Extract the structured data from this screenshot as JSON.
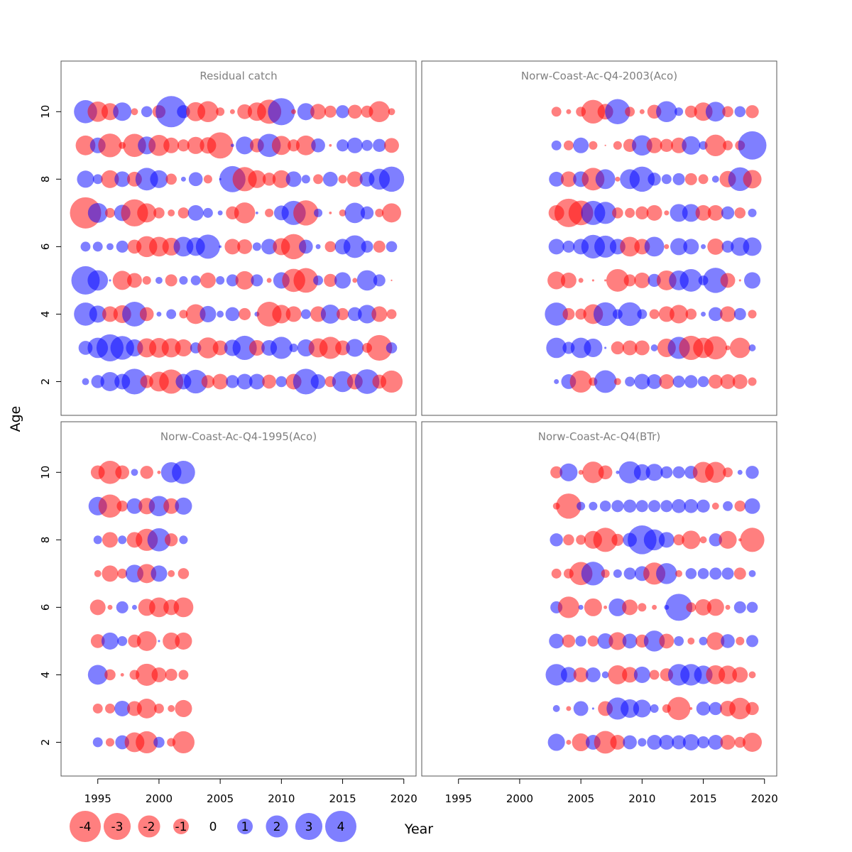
{
  "figure": {
    "y_axis_label": "Age",
    "x_axis_label": "Year",
    "x_ticks": [
      1995,
      2000,
      2005,
      2010,
      2015,
      2020
    ],
    "y_ticks": [
      2,
      4,
      6,
      8,
      10
    ],
    "colors": {
      "positive": "#0000ff",
      "negative": "#ff0000",
      "panel_title": "#808080",
      "frame": "#555555"
    },
    "legend": [
      {
        "value": -4,
        "label": "-4"
      },
      {
        "value": -3,
        "label": "-3"
      },
      {
        "value": -2,
        "label": "-2"
      },
      {
        "value": -1,
        "label": "-1"
      },
      {
        "value": 0,
        "label": "0"
      },
      {
        "value": 1,
        "label": "1"
      },
      {
        "value": 2,
        "label": "2"
      },
      {
        "value": 3,
        "label": "3"
      },
      {
        "value": 4,
        "label": "4"
      }
    ]
  },
  "chart_data": [
    {
      "type": "scatter",
      "title": "Residual catch",
      "xlabel": "Year",
      "ylabel": "Age",
      "xlim": [
        1992,
        2021
      ],
      "ylim": [
        1,
        11.5
      ],
      "ages": [
        2,
        3,
        4,
        5,
        6,
        7,
        8,
        9,
        10
      ],
      "residuals": {
        "2": {
          "1994": 0.2,
          "1995": 0.7,
          "1996": 1.5,
          "1997": 1.0,
          "1998": 2.7,
          "1999": -0.7,
          "2000": -1.6,
          "2001": -2.4,
          "2002": 1.0,
          "2003": 2.3,
          "2004": -0.7,
          "2005": -1.0,
          "2006": 0.7,
          "2007": 1.0,
          "2008": 1.0,
          "2009": -0.8,
          "2010": 0.5,
          "2011": -1.0,
          "2012": 2.7,
          "2013": 0.9,
          "2014": -0.5,
          "2015": 1.8,
          "2016": -1.0,
          "2017": 2.5,
          "2018": -0.8,
          "2019": -2.0
        },
        "3": {
          "1994": 0.8,
          "1995": 1.7,
          "1996": 3.0,
          "1997": 2.3,
          "1998": 1.2,
          "1999": -1.5,
          "2000": -1.6,
          "2001": -1.5,
          "2002": -1.2,
          "2003": 0.5,
          "2004": -1.8,
          "2005": -0.9,
          "2006": 1.1,
          "2007": 2.4,
          "2008": -1.0,
          "2009": 1.0,
          "2010": 2.0,
          "2011": 0.3,
          "2012": 1.2,
          "2013": -1.5,
          "2014": -2.0,
          "2015": -0.9,
          "2016": 1.3,
          "2017": -0.4,
          "2018": -2.7,
          "2019": 0.5
        },
        "4": {
          "1994": 2.2,
          "1995": 1.2,
          "1996": -1.0,
          "1997": -1.3,
          "1998": 2.5,
          "1999": -0.8,
          "2000": 0.1,
          "2001": 0.4,
          "2002": -0.3,
          "2003": -1.6,
          "2004": 1.1,
          "2005": 0.2,
          "2006": 0.8,
          "2007": -0.6,
          "2008": 0.1,
          "2009": -2.5,
          "2010": -1.4,
          "2011": -1.0,
          "2012": 0.4,
          "2013": -1.0,
          "2014": 1.5,
          "2015": -0.6,
          "2016": 0.8,
          "2017": 1.4,
          "2018": -1.0,
          "2019": -0.4
        },
        "5": {
          "1994": 3.3,
          "1995": 1.7,
          "1996": 0.02,
          "1997": -1.5,
          "1998": -0.9,
          "1999": -0.3,
          "2000": 0.2,
          "2001": -0.6,
          "2002": 0.3,
          "2003": 0.4,
          "2004": -1.0,
          "2005": 0.3,
          "2006": 0.6,
          "2007": -1.4,
          "2008": 0.6,
          "2009": -0.1,
          "2010": 1.1,
          "2011": -2.2,
          "2012": -2.5,
          "2013": 0.4,
          "2014": -0.7,
          "2015": 1.1,
          "2016": -0.1,
          "2017": 1.7,
          "2018": 0.6,
          "2019": -0.01
        },
        "6": {
          "1994": 0.4,
          "1995": 0.4,
          "1996": 0.2,
          "1997": 0.6,
          "1998": -0.8,
          "1999": -1.8,
          "2000": -1.6,
          "2001": -1.3,
          "2002": 1.6,
          "2003": 1.4,
          "2004": 2.4,
          "2005": 0.03,
          "2006": -1.0,
          "2007": -0.9,
          "2008": 0.3,
          "2009": 1.0,
          "2010": -1.2,
          "2011": -2.6,
          "2012": 0.8,
          "2013": 0.1,
          "2014": -0.5,
          "2015": 1.0,
          "2016": 2.1,
          "2017": 0.6,
          "2018": -0.6,
          "2019": 0.5
        },
        "7": {
          "1994": -4.0,
          "1995": 1.6,
          "1996": -0.4,
          "1997": 1.1,
          "1998": -3.0,
          "1999": -1.5,
          "2000": -0.5,
          "2001": -0.2,
          "2002": -0.5,
          "2003": 1.0,
          "2004": 0.4,
          "2005": 0.1,
          "2006": -0.7,
          "2007": -1.8,
          "2008": 0.03,
          "2009": -0.3,
          "2010": 0.9,
          "2011": 2.4,
          "2012": -2.6,
          "2013": 0.3,
          "2014": -0.03,
          "2015": -0.2,
          "2016": 1.7,
          "2017": 0.7,
          "2018": -0.3,
          "2019": -1.5
        },
        "8": {
          "1994": 1.2,
          "1995": 0.4,
          "1996": -1.3,
          "1997": 1.0,
          "1998": -0.9,
          "1999": 2.1,
          "2000": 1.3,
          "2001": -0.5,
          "2002": 0.1,
          "2003": 0.8,
          "2004": -0.3,
          "2005": 0.02,
          "2006": 2.8,
          "2007": -2.4,
          "2008": -1.3,
          "2009": -0.7,
          "2010": -1.3,
          "2011": 1.0,
          "2012": 0.3,
          "2013": -0.4,
          "2014": 0.9,
          "2015": -0.3,
          "2016": -1.0,
          "2017": 0.9,
          "2018": 1.8,
          "2019": 2.6
        },
        "9": {
          "1994": -1.6,
          "1995": 1.0,
          "1996": -2.3,
          "1997": -0.2,
          "1998": -2.2,
          "1999": 1.3,
          "2000": -1.8,
          "2001": -1.0,
          "2002": -0.6,
          "2003": -1.2,
          "2004": -1.1,
          "2005": -2.8,
          "2006": 0.05,
          "2007": 1.3,
          "2008": -0.8,
          "2009": 2.2,
          "2010": -1.5,
          "2011": -0.6,
          "2012": -1.6,
          "2013": 0.8,
          "2014": -0.03,
          "2015": 0.6,
          "2016": 1.0,
          "2017": 0.5,
          "2018": 0.7,
          "2019": -0.9
        },
        "10": {
          "1994": 2.2,
          "1995": -1.7,
          "1996": -1.2,
          "1997": 1.4,
          "1998": -0.2,
          "1999": 0.5,
          "2000": -0.7,
          "2001": 4.0,
          "2002": 0.7,
          "2003": -1.5,
          "2004": -1.8,
          "2005": -0.3,
          "2006": -0.1,
          "2007": -0.9,
          "2008": -1.4,
          "2009": -2.4,
          "2010": 3.0,
          "2011": -0.1,
          "2012": 1.2,
          "2013": -1.0,
          "2014": -0.6,
          "2015": 0.7,
          "2016": -0.8,
          "2017": -0.6,
          "2018": -1.8,
          "2019": -0.2
        }
      }
    },
    {
      "type": "scatter",
      "title": "Norw-Coast-Ac-Q4-2003(Aco)",
      "xlabel": "Year",
      "ylabel": "Age",
      "xlim": [
        1992,
        2021
      ],
      "ylim": [
        1,
        11.5
      ],
      "ages": [
        2,
        3,
        4,
        5,
        6,
        7,
        8,
        9,
        10
      ],
      "residuals": {
        "2": {
          "2003": 0.1,
          "2004": 0.9,
          "2005": -2.0,
          "2006": -0.3,
          "2007": 2.1,
          "2008": -0.2,
          "2009": 0.4,
          "2010": 1.0,
          "2011": 0.9,
          "2012": -0.9,
          "2013": 0.6,
          "2014": 0.7,
          "2015": 0.5,
          "2016": -0.8,
          "2017": -0.9,
          "2018": -0.9,
          "2019": -0.3
        },
        "3": {
          "2003": 1.7,
          "2004": 0.6,
          "2005": 1.7,
          "2006": 1.4,
          "2007": 0.02,
          "2008": -0.7,
          "2009": -0.9,
          "2010": -0.9,
          "2011": 0.2,
          "2012": -1.4,
          "2013": 2.0,
          "2014": -2.4,
          "2015": -1.7,
          "2016": -2.2,
          "2017": -0.1,
          "2018": -1.7,
          "2019": 0.2
        },
        "4": {
          "2003": 2.2,
          "2004": -0.6,
          "2005": -0.5,
          "2006": -1.6,
          "2007": 2.3,
          "2008": 0.4,
          "2009": 2.3,
          "2010": 0.4,
          "2011": -0.4,
          "2012": -1.0,
          "2013": -1.4,
          "2014": -0.5,
          "2015": 0.1,
          "2016": 0.8,
          "2017": -1.0,
          "2018": 0.6,
          "2019": -0.3
        },
        "5": {
          "2003": -1.3,
          "2004": -1.0,
          "2005": -0.1,
          "2006": -0.02,
          "2007": -0.02,
          "2008": -2.1,
          "2009": -0.6,
          "2010": -1.0,
          "2011": 0.7,
          "2012": -1.6,
          "2013": 1.6,
          "2014": 2.1,
          "2015": 0.4,
          "2016": 2.6,
          "2017": -0.9,
          "2018": -0.02,
          "2019": 1.1
        },
        "6": {
          "2003": 1.0,
          "2004": 0.6,
          "2005": 1.0,
          "2006": 2.3,
          "2007": 2.0,
          "2008": 1.0,
          "2009": -1.6,
          "2010": -1.0,
          "2011": 1.6,
          "2012": -0.1,
          "2013": 1.2,
          "2014": 1.0,
          "2015": 0.1,
          "2016": -1.1,
          "2017": 0.6,
          "2018": 1.4,
          "2019": 1.4
        },
        "7": {
          "2003": -1.0,
          "2004": -3.3,
          "2005": -2.5,
          "2006": 2.4,
          "2007": 2.0,
          "2008": -0.5,
          "2009": -0.4,
          "2010": -0.7,
          "2011": -1.0,
          "2012": -0.1,
          "2013": 1.3,
          "2014": 1.3,
          "2015": -1.0,
          "2016": -1.0,
          "2017": 0.7,
          "2018": -0.5,
          "2019": 0.3
        },
        "8": {
          "2003": 0.9,
          "2004": -1.0,
          "2005": 1.0,
          "2006": -2.1,
          "2007": 1.6,
          "2008": -0.1,
          "2009": 1.6,
          "2010": 2.6,
          "2011": 0.7,
          "2012": 0.4,
          "2013": 0.6,
          "2014": -0.6,
          "2015": -0.4,
          "2016": 0.2,
          "2017": -1.1,
          "2018": 2.3,
          "2019": -1.4
        },
        "9": {
          "2003": 0.4,
          "2004": -0.4,
          "2005": 1.0,
          "2006": -0.3,
          "2007": -0.01,
          "2008": -0.3,
          "2009": -0.7,
          "2010": 1.7,
          "2011": -1.0,
          "2012": -0.7,
          "2013": -1.0,
          "2014": 1.4,
          "2015": 0.3,
          "2016": -1.9,
          "2017": -0.4,
          "2018": -0.4,
          "2019": 3.3
        },
        "10": {
          "2003": -0.4,
          "2004": -0.1,
          "2005": -0.4,
          "2006": -2.3,
          "2007": -1.0,
          "2008": 2.6,
          "2009": -0.4,
          "2010": -0.1,
          "2011": -0.8,
          "2012": 1.8,
          "2013": 0.3,
          "2014": -0.6,
          "2015": -1.4,
          "2016": 1.6,
          "2017": -0.5,
          "2018": 0.5,
          "2019": -0.7
        }
      }
    },
    {
      "type": "scatter",
      "title": "Norw-Coast-Ac-Q4-1995(Aco)",
      "xlabel": "Year",
      "ylabel": "Age",
      "xlim": [
        1992,
        2021
      ],
      "ylim": [
        1,
        11.5
      ],
      "ages": [
        2,
        3,
        4,
        5,
        6,
        7,
        8,
        9,
        10
      ],
      "residuals": {
        "2": {
          "1995": 0.4,
          "1996": -0.3,
          "1997": 0.8,
          "1998": -1.6,
          "1999": -2.0,
          "2000": 0.5,
          "2001": -0.3,
          "2002": -2.0
        },
        "3": {
          "1995": -0.4,
          "1996": -0.4,
          "1997": 1.0,
          "1998": -0.9,
          "1999": -1.6,
          "2000": -0.4,
          "2001": -0.2,
          "2002": -1.2
        },
        "4": {
          "1995": 1.6,
          "1996": -0.5,
          "1997": -0.05,
          "1998": -0.4,
          "1999": -2.0,
          "2000": -0.9,
          "2001": -0.6,
          "2002": -0.4
        },
        "5": {
          "1995": -0.8,
          "1996": 1.2,
          "1997": 0.4,
          "1998": -0.7,
          "1999": -1.6,
          "2000": 0.02,
          "2001": -1.2,
          "2002": -1.2
        },
        "6": {
          "1995": -1.0,
          "1996": -0.1,
          "1997": 0.6,
          "1998": 0.1,
          "1999": -1.2,
          "2000": -1.6,
          "2001": -1.0,
          "2002": -1.6
        },
        "7": {
          "1995": -0.2,
          "1996": -1.1,
          "1997": -0.4,
          "1998": 1.3,
          "1999": -1.5,
          "2000": 1.1,
          "2001": -0.2,
          "2002": -0.5
        },
        "8": {
          "1995": 0.3,
          "1996": -1.0,
          "1997": 0.3,
          "1998": -1.0,
          "1999": -2.0,
          "2000": 2.2,
          "2001": -0.7,
          "2002": 0.3
        },
        "9": {
          "1995": 1.4,
          "1996": -2.2,
          "1997": -0.5,
          "1998": 1.0,
          "1999": -1.1,
          "2000": 1.7,
          "2001": -1.0,
          "2002": 1.2
        },
        "10": {
          "1995": -0.8,
          "1996": -2.2,
          "1997": -0.8,
          "1998": 0.2,
          "1999": -0.7,
          "2000": -0.05,
          "2001": 1.7,
          "2002": 2.2
        }
      }
    },
    {
      "type": "scatter",
      "title": "Norw-Coast-Ac-Q4(BTr)",
      "xlabel": "Year",
      "ylabel": "Age",
      "xlim": [
        1992,
        2021
      ],
      "ylim": [
        1,
        11.5
      ],
      "ages": [
        2,
        3,
        4,
        5,
        6,
        7,
        8,
        9,
        10
      ],
      "residuals": {
        "2": {
          "2003": 1.2,
          "2004": -0.1,
          "2005": -1.3,
          "2006": 0.9,
          "2007": -2.1,
          "2008": -0.9,
          "2009": 0.8,
          "2010": 0.3,
          "2011": 0.9,
          "2012": 0.9,
          "2013": 0.8,
          "2014": 1.1,
          "2015": 0.6,
          "2016": 0.9,
          "2017": -0.9,
          "2018": -0.5,
          "2019": -1.5
        },
        "3": {
          "2003": 0.2,
          "2004": -0.1,
          "2005": 0.9,
          "2006": 0.02,
          "2007": -0.9,
          "2008": 2.0,
          "2009": 1.4,
          "2010": 1.3,
          "2011": 0.3,
          "2012": -0.3,
          "2013": -2.2,
          "2014": -0.03,
          "2015": 0.8,
          "2016": 0.7,
          "2017": -1.0,
          "2018": -1.9,
          "2019": -0.7
        },
        "4": {
          "2003": 1.9,
          "2004": 1.0,
          "2005": -0.9,
          "2006": 0.9,
          "2007": 0.2,
          "2008": -1.5,
          "2009": -1.0,
          "2010": 1.1,
          "2011": -0.4,
          "2012": -0.7,
          "2013": 1.9,
          "2014": 1.9,
          "2015": 1.4,
          "2016": -1.5,
          "2017": -1.4,
          "2018": -1.0,
          "2019": -0.2
        },
        "5": {
          "2003": 0.9,
          "2004": -0.7,
          "2005": 0.5,
          "2006": -0.5,
          "2007": 1.0,
          "2008": -1.3,
          "2009": 0.9,
          "2010": -0.7,
          "2011": 1.8,
          "2012": -0.9,
          "2013": 0.4,
          "2014": -0.2,
          "2015": 0.3,
          "2016": -1.3,
          "2017": 0.8,
          "2018": -0.3,
          "2019": 0.6
        },
        "6": {
          "2003": 0.6,
          "2004": -1.9,
          "2005": 0.1,
          "2006": -1.3,
          "2007": -0.05,
          "2008": 1.3,
          "2009": -1.0,
          "2010": -0.3,
          "2011": -0.1,
          "2012": 0.1,
          "2013": 3.0,
          "2014": -0.4,
          "2015": -1.1,
          "2016": -1.2,
          "2017": -0.1,
          "2018": 0.6,
          "2019": 0.5
        },
        "7": {
          "2003": -0.4,
          "2004": -0.4,
          "2005": -2.2,
          "2006": 2.3,
          "2007": -0.3,
          "2008": 0.3,
          "2009": 0.6,
          "2010": 0.9,
          "2011": -2.0,
          "2012": 1.8,
          "2013": -0.2,
          "2014": 0.5,
          "2015": 0.5,
          "2016": 0.6,
          "2017": 0.6,
          "2018": -0.6,
          "2019": 0.2
        },
        "8": {
          "2003": 0.7,
          "2004": -0.5,
          "2005": -0.4,
          "2006": -1.3,
          "2007": -2.4,
          "2008": -0.6,
          "2009": 0.8,
          "2010": 3.4,
          "2011": 1.8,
          "2012": 1.0,
          "2013": -0.5,
          "2014": -1.4,
          "2015": -0.2,
          "2016": 0.7,
          "2017": -1.3,
          "2018": -0.04,
          "2019": -2.4
        },
        "9": {
          "2003": -0.2,
          "2004": -2.6,
          "2005": 0.3,
          "2006": 0.3,
          "2007": 0.5,
          "2008": 0.6,
          "2009": 0.7,
          "2010": 0.6,
          "2011": 0.6,
          "2012": 0.6,
          "2013": 0.8,
          "2014": 0.8,
          "2015": 0.7,
          "2016": -0.2,
          "2017": 0.4,
          "2018": -0.5,
          "2019": 1.0
        },
        "10": {
          "2003": -0.6,
          "2004": 1.3,
          "2005": -0.1,
          "2006": -1.9,
          "2007": -0.8,
          "2008": 0.05,
          "2009": 2.0,
          "2010": 1.1,
          "2011": 1.2,
          "2012": 0.6,
          "2013": 0.6,
          "2014": 0.7,
          "2015": -1.8,
          "2016": -1.8,
          "2017": -0.4,
          "2018": 0.1,
          "2019": 0.7
        }
      }
    }
  ]
}
